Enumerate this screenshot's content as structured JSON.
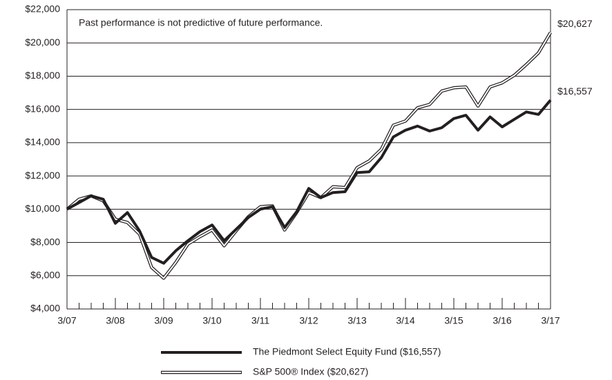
{
  "chart_data": {
    "type": "line",
    "annotation": "Past performance is not predictive of future performance.",
    "categories": [
      "3/07",
      null,
      null,
      null,
      "3/08",
      null,
      null,
      null,
      "3/09",
      null,
      null,
      null,
      "3/10",
      null,
      null,
      null,
      "3/11",
      null,
      null,
      null,
      "3/12",
      null,
      null,
      null,
      "3/13",
      null,
      null,
      null,
      "3/14",
      null,
      null,
      null,
      "3/15",
      null,
      null,
      null,
      "3/16",
      null,
      null,
      null,
      "3/17"
    ],
    "series": [
      {
        "name": "The Piedmont Select Equity Fund ($16,557)",
        "color": "#231f20",
        "style": "solid",
        "end_label": "$16,557",
        "values": [
          10000,
          10400,
          10800,
          10600,
          9150,
          9800,
          8700,
          7100,
          6750,
          7500,
          8100,
          8650,
          9050,
          8100,
          8800,
          9500,
          10000,
          10150,
          8900,
          9850,
          11250,
          10700,
          11000,
          11050,
          12200,
          12250,
          13100,
          14350,
          14750,
          15000,
          14700,
          14900,
          15450,
          15650,
          14750,
          15550,
          14950,
          15400,
          15850,
          15700,
          16557
        ]
      },
      {
        "name": "S&P 500® Index ($20,627)",
        "color": "#231f20",
        "style": "double",
        "end_label": "$20,627",
        "values": [
          10000,
          10600,
          10800,
          10500,
          9400,
          9200,
          8500,
          6500,
          5850,
          6800,
          7900,
          8350,
          8750,
          7800,
          8700,
          9550,
          10150,
          10200,
          8750,
          9800,
          11000,
          10700,
          11350,
          11300,
          12500,
          12900,
          13600,
          15050,
          15300,
          16100,
          16300,
          17100,
          17300,
          17350,
          16200,
          17350,
          17600,
          18050,
          18700,
          19400,
          20627
        ]
      }
    ],
    "ylim": [
      4000,
      22000
    ],
    "yticks": [
      {
        "value": 4000,
        "label": "$4,000"
      },
      {
        "value": 6000,
        "label": "$6,000"
      },
      {
        "value": 8000,
        "label": "$8,000"
      },
      {
        "value": 10000,
        "label": "$10,000"
      },
      {
        "value": 12000,
        "label": "$12,000"
      },
      {
        "value": 14000,
        "label": "$14,000"
      },
      {
        "value": 16000,
        "label": "$16,000"
      },
      {
        "value": 18000,
        "label": "$18,000"
      },
      {
        "value": 20000,
        "label": "$20,000"
      },
      {
        "value": 22000,
        "label": "$22,000"
      }
    ],
    "grid": true,
    "legend": "bottom"
  }
}
